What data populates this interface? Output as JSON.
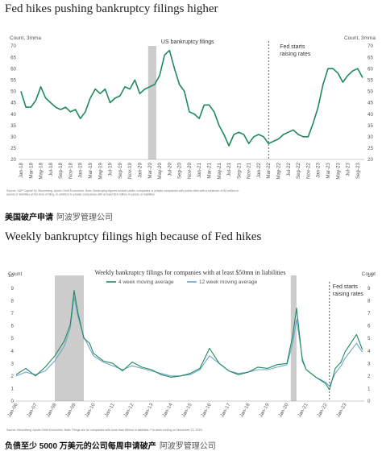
{
  "captions": {
    "top": {
      "main": "美国破产申请",
      "source": "阿波罗管理公司"
    },
    "bottom": {
      "main": "负债至少 5000 万美元的公司每周申请破产",
      "source": "阿波罗管理公司"
    }
  },
  "chart_data": [
    {
      "type": "line",
      "title": "Fed hikes pushing bankruptcy filings higher",
      "ylabel_left": "Count, 3mma",
      "ylabel_right": "Count, 3mma",
      "ylim": [
        20,
        70
      ],
      "yticks": [
        20,
        25,
        30,
        35,
        40,
        45,
        50,
        55,
        60,
        65,
        70
      ],
      "grid": false,
      "legend": "none",
      "colors": {
        "line": "#1e8a5a",
        "shade": "#cccccc",
        "marker": "#333333"
      },
      "annotations": {
        "series_label": "US bankruptcy filings",
        "event_label_1": "Fed starts",
        "event_label_2": "raising rates"
      },
      "event_marker_x": "Mar-22",
      "shaded_period": [
        "Mar-20",
        "Apr-20"
      ],
      "x_tick_labels": [
        "Jan-18",
        "Mar-18",
        "May-18",
        "Jul-18",
        "Sep-18",
        "Nov-18",
        "Jan-19",
        "Mar-19",
        "May-19",
        "Jul-19",
        "Sep-19",
        "Nov-19",
        "Jan-20",
        "Mar-20",
        "May-20",
        "Jul-20",
        "Sep-20",
        "Nov-20",
        "Jan-21",
        "Mar-21",
        "May-21",
        "Jul-21",
        "Sep-21",
        "Nov-21",
        "Jan-22",
        "Mar-22",
        "May-22",
        "Jul-22",
        "Sep-22",
        "Nov-22",
        "Jan-23",
        "Mar-23",
        "May-23",
        "Jul-23",
        "Sep-23"
      ],
      "x": [
        "Jan-18",
        "Feb-18",
        "Mar-18",
        "Apr-18",
        "May-18",
        "Jun-18",
        "Jul-18",
        "Aug-18",
        "Sep-18",
        "Oct-18",
        "Nov-18",
        "Dec-18",
        "Jan-19",
        "Feb-19",
        "Mar-19",
        "Apr-19",
        "May-19",
        "Jun-19",
        "Jul-19",
        "Aug-19",
        "Sep-19",
        "Oct-19",
        "Nov-19",
        "Dec-19",
        "Jan-20",
        "Feb-20",
        "Mar-20",
        "Apr-20",
        "May-20",
        "Jun-20",
        "Jul-20",
        "Aug-20",
        "Sep-20",
        "Oct-20",
        "Nov-20",
        "Dec-20",
        "Jan-21",
        "Feb-21",
        "Mar-21",
        "Apr-21",
        "May-21",
        "Jun-21",
        "Jul-21",
        "Aug-21",
        "Sep-21",
        "Oct-21",
        "Nov-21",
        "Dec-21",
        "Jan-22",
        "Feb-22",
        "Mar-22",
        "Apr-22",
        "May-22",
        "Jun-22",
        "Jul-22",
        "Aug-22",
        "Sep-22",
        "Oct-22",
        "Nov-22",
        "Dec-22",
        "Jan-23",
        "Feb-23",
        "Mar-23",
        "Apr-23",
        "May-23",
        "Jun-23",
        "Jul-23",
        "Aug-23",
        "Sep-23",
        "Oct-23"
      ],
      "values": [
        50,
        43,
        43,
        46,
        52,
        47,
        45,
        43,
        42,
        43,
        41,
        42,
        38,
        41,
        47,
        51,
        49,
        51,
        45,
        47,
        48,
        52,
        51,
        55,
        49,
        51,
        52,
        53,
        57,
        66,
        68,
        60,
        53,
        50,
        41,
        40,
        38,
        44,
        44,
        41,
        35,
        31,
        26,
        31,
        32,
        31,
        27,
        30,
        31,
        30,
        27,
        28,
        29,
        31,
        32,
        33,
        31,
        30,
        30,
        36,
        43,
        53,
        60,
        60,
        58,
        54,
        57,
        59,
        60,
        56
      ],
      "footnote": "Source: S&P Capital IQ, Bloomberg, Apollo Chief Economist. Note: Bankruptcy figures include public companies or private companies with public debt with a minimum of $2 million in assets or liabilities at the time of filing, in addition to private companies with at least $10 million in assets or liabilities."
    },
    {
      "type": "line",
      "title": "Weekly bankruptcy filings high because of Fed hikes",
      "chart_title": "Weekly bankruptcy filings for companies with at least $50mn in liabilities",
      "ylabel_left": "Count",
      "ylabel_right": "Count",
      "ylim": [
        0,
        10
      ],
      "yticks": [
        0,
        1,
        2,
        3,
        4,
        5,
        6,
        7,
        8,
        9,
        10
      ],
      "grid": false,
      "legend": "top-center",
      "colors": {
        "ma4": "#1e8a5a",
        "ma12": "#6fa4cf",
        "shade": "#cccccc",
        "marker": "#333333"
      },
      "annotations": {
        "event_label_1": "Fed starts",
        "event_label_2": "raising rates"
      },
      "event_marker_x": 2022.2,
      "shaded_periods": [
        [
          2008.0,
          2009.5
        ],
        [
          2020.2,
          2020.5
        ]
      ],
      "xlim": [
        2006.0,
        2024.0
      ],
      "x_tick_labels": [
        "Jan-06",
        "Jan-07",
        "Jan-08",
        "Jan-09",
        "Jan-10",
        "Jan-11",
        "Jan-12",
        "Jan-13",
        "Jan-14",
        "Jan-15",
        "Jan-16",
        "Jan-17",
        "Jan-18",
        "Jan-19",
        "Jan-20",
        "Jan-21",
        "Jan-22",
        "Jan-23"
      ],
      "series": [
        {
          "name": "4 week moving average",
          "x": [
            2006.0,
            2006.5,
            2007.0,
            2007.5,
            2008.0,
            2008.5,
            2008.8,
            2009.0,
            2009.2,
            2009.5,
            2009.8,
            2010.0,
            2010.5,
            2011.0,
            2011.5,
            2012.0,
            2012.5,
            2013.0,
            2013.5,
            2014.0,
            2014.5,
            2015.0,
            2015.5,
            2016.0,
            2016.5,
            2017.0,
            2017.5,
            2018.0,
            2018.5,
            2019.0,
            2019.5,
            2020.0,
            2020.3,
            2020.5,
            2020.8,
            2021.0,
            2021.5,
            2022.0,
            2022.2,
            2022.5,
            2022.8,
            2023.0,
            2023.3,
            2023.6,
            2023.9
          ],
          "values": [
            2.1,
            2.6,
            2.0,
            2.7,
            3.6,
            4.8,
            6.1,
            8.8,
            7.0,
            5.0,
            4.6,
            3.8,
            3.2,
            3.0,
            2.4,
            3.1,
            2.7,
            2.5,
            2.1,
            1.9,
            2.0,
            2.2,
            2.6,
            4.2,
            3.0,
            2.4,
            2.1,
            2.3,
            2.7,
            2.6,
            2.9,
            3.0,
            5.2,
            7.4,
            3.2,
            2.5,
            1.9,
            1.4,
            0.9,
            2.6,
            3.1,
            3.9,
            4.6,
            5.3,
            4.1
          ]
        },
        {
          "name": "12 week moving average",
          "x": [
            2006.0,
            2006.5,
            2007.0,
            2007.5,
            2008.0,
            2008.5,
            2008.8,
            2009.0,
            2009.2,
            2009.5,
            2009.8,
            2010.0,
            2010.5,
            2011.0,
            2011.5,
            2012.0,
            2012.5,
            2013.0,
            2013.5,
            2014.0,
            2014.5,
            2015.0,
            2015.5,
            2016.0,
            2016.5,
            2017.0,
            2017.5,
            2018.0,
            2018.5,
            2019.0,
            2019.5,
            2020.0,
            2020.3,
            2020.5,
            2020.8,
            2021.0,
            2021.5,
            2022.0,
            2022.2,
            2022.5,
            2022.8,
            2023.0,
            2023.3,
            2023.6,
            2023.9
          ],
          "values": [
            2.0,
            2.3,
            2.1,
            2.4,
            3.2,
            4.4,
            5.8,
            8.3,
            6.7,
            5.1,
            4.2,
            3.6,
            3.1,
            2.8,
            2.5,
            2.8,
            2.6,
            2.4,
            2.2,
            2.0,
            2.0,
            2.1,
            2.5,
            3.6,
            3.0,
            2.4,
            2.2,
            2.3,
            2.5,
            2.5,
            2.7,
            2.9,
            4.6,
            6.5,
            3.4,
            2.5,
            1.9,
            1.5,
            1.2,
            2.2,
            2.8,
            3.4,
            4.0,
            4.6,
            3.9
          ]
        }
      ],
      "footnote": "Source: Bloomberg, Apollo Chief Economist. Note: Filings are for companies with more than $50mn in liabilities. For week ending on November 13, 2023."
    }
  ]
}
